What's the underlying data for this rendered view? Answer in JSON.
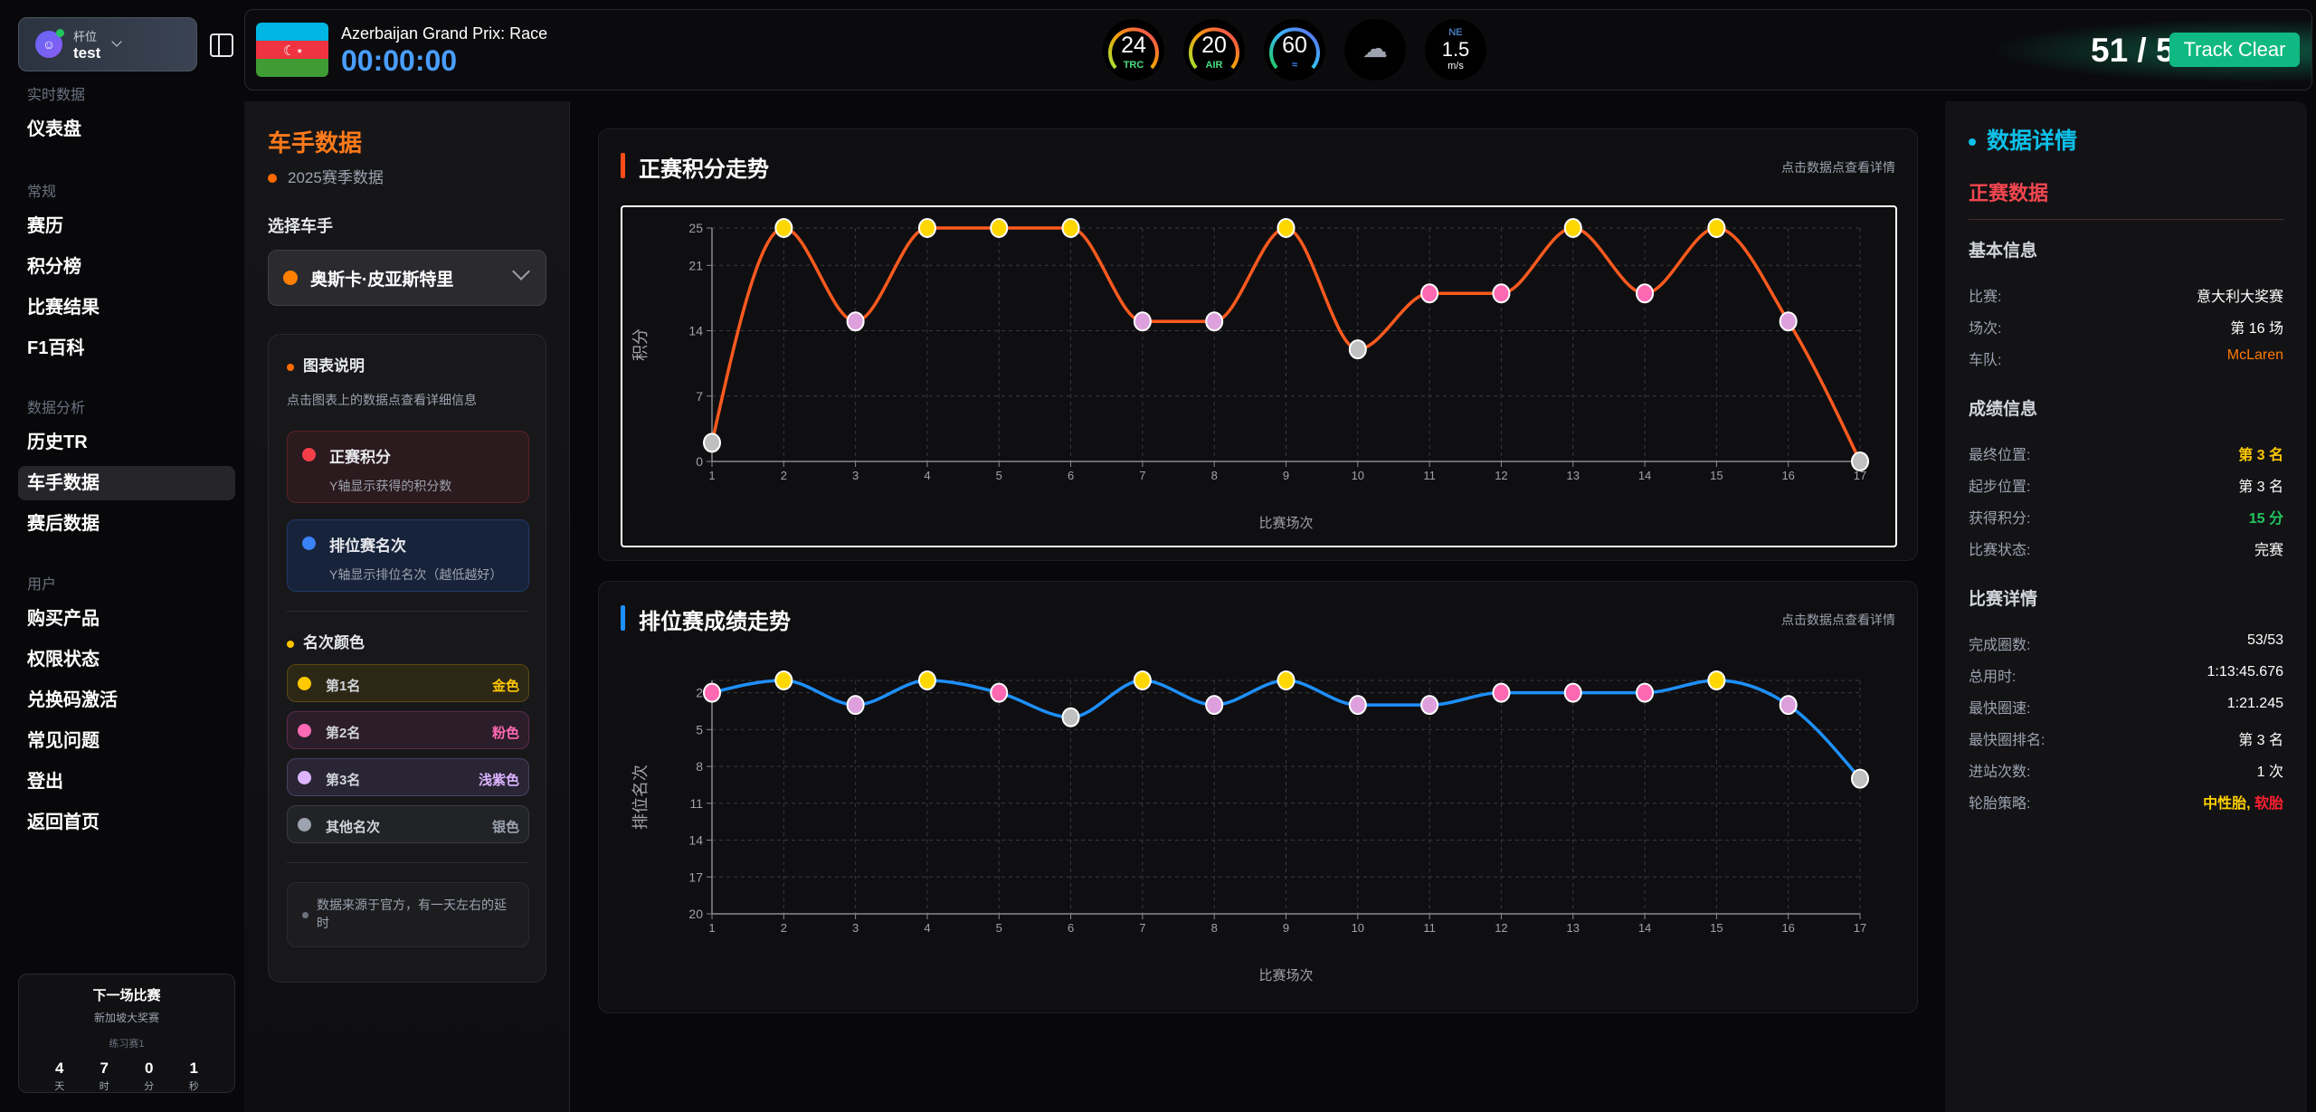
{
  "profile": {
    "role": "杆位",
    "username": "test",
    "icon": "user-icon"
  },
  "sidebar": {
    "sections": [
      {
        "title": "实时数据",
        "items": [
          "仪表盘"
        ]
      },
      {
        "title": "常规",
        "items": [
          "赛历",
          "积分榜",
          "比赛结果",
          "F1百科"
        ]
      },
      {
        "title": "数据分析",
        "items": [
          "历史TR",
          "车手数据",
          "赛后数据"
        ]
      },
      {
        "title": "用户",
        "items": [
          "购买产品",
          "权限状态",
          "兑换码激活",
          "常见问题",
          "登出",
          "返回首页"
        ]
      }
    ],
    "active": "车手数据",
    "next_race": {
      "title": "下一场比赛",
      "name": "新加坡大奖赛",
      "session": "练习赛1",
      "countdown": [
        {
          "v": "4",
          "u": "天"
        },
        {
          "v": "7",
          "u": "时"
        },
        {
          "v": "0",
          "u": "分"
        },
        {
          "v": "1",
          "u": "秒"
        }
      ]
    }
  },
  "topbar": {
    "race_title": "Azerbaijan Grand Prix: Race",
    "timer": "00:00:00",
    "gauges": [
      {
        "value": "24",
        "label": "TRC"
      },
      {
        "value": "20",
        "label": "AIR"
      },
      {
        "value": "60",
        "label": "humidity-icon"
      }
    ],
    "weather_icon": "rain-cloud-icon",
    "wind": {
      "dir": "NE",
      "speed": "1.5",
      "unit": "m/s"
    },
    "laps": "51 / 51",
    "track_status": "Track Clear"
  },
  "left": {
    "title": "车手数据",
    "season": "2025赛季数据",
    "select_label": "选择车手",
    "driver": "奥斯卡·皮亚斯特里",
    "legend_title": "图表说明",
    "legend_desc": "点击图表上的数据点查看详细信息",
    "legend_items": [
      {
        "title": "正赛积分",
        "desc": "Y轴显示获得的积分数"
      },
      {
        "title": "排位赛名次",
        "desc": "Y轴显示排位名次（越低越好）"
      }
    ],
    "rank_title": "名次颜色",
    "ranks": [
      {
        "label": "第1名",
        "color_name": "金色"
      },
      {
        "label": "第2名",
        "color_name": "粉色"
      },
      {
        "label": "第3名",
        "color_name": "浅紫色"
      },
      {
        "label": "其他名次",
        "color_name": "银色"
      }
    ],
    "note": "数据来源于官方，有一天左右的延时"
  },
  "colors": {
    "gold": "#ffd700",
    "pink": "#ff69b4",
    "lavender": "#dda0dd",
    "silver": "#c0c0c0",
    "race_line": "#ff5a1f",
    "quali_line": "#1e90ff",
    "accent": "#ff7a1a"
  },
  "chart_data": [
    {
      "type": "line",
      "title": "正赛积分走势",
      "hint": "点击数据点查看详情",
      "xlabel": "比赛场次",
      "ylabel": "积分",
      "x": [
        1,
        2,
        3,
        4,
        5,
        6,
        7,
        8,
        9,
        10,
        11,
        12,
        13,
        14,
        15,
        16,
        17
      ],
      "values": [
        2,
        25,
        15,
        25,
        25,
        25,
        15,
        15,
        25,
        12,
        18,
        18,
        25,
        18,
        25,
        15,
        0
      ],
      "yticks": [
        0,
        7,
        14,
        21,
        25
      ],
      "ylim": [
        0,
        25
      ],
      "grid": true
    },
    {
      "type": "line",
      "title": "排位赛成绩走势",
      "hint": "点击数据点查看详情",
      "xlabel": "比赛场次",
      "ylabel": "排位名次",
      "x": [
        1,
        2,
        3,
        4,
        5,
        6,
        7,
        8,
        9,
        10,
        11,
        12,
        13,
        14,
        15,
        16,
        17
      ],
      "values": [
        2,
        1,
        3,
        1,
        2,
        4,
        1,
        3,
        1,
        3,
        3,
        2,
        2,
        2,
        1,
        3,
        9
      ],
      "yticks": [
        2,
        5,
        8,
        11,
        14,
        17,
        20
      ],
      "ylim": [
        1,
        20
      ],
      "y_inverted": true,
      "grid": true
    }
  ],
  "details": {
    "title": "数据详情",
    "subtitle": "正赛数据",
    "basic_title": "基本信息",
    "basic": [
      {
        "k": "比赛:",
        "v": "意大利大奖赛"
      },
      {
        "k": "场次:",
        "v": "第 16 场"
      },
      {
        "k": "车队:",
        "v": "McLaren"
      }
    ],
    "result_title": "成绩信息",
    "result": [
      {
        "k": "最终位置:",
        "v": "第 3 名"
      },
      {
        "k": "起步位置:",
        "v": "第 3 名"
      },
      {
        "k": "获得积分:",
        "v": "15 分"
      },
      {
        "k": "比赛状态:",
        "v": "完赛"
      }
    ],
    "race_title": "比赛详情",
    "race": [
      {
        "k": "完成圈数:",
        "v": "53/53"
      },
      {
        "k": "总用时:",
        "v": "1:13:45.676"
      },
      {
        "k": "最快圈速:",
        "v": "1:21.245"
      },
      {
        "k": "最快圈排名:",
        "v": "第 3 名"
      },
      {
        "k": "进站次数:",
        "v": "1 次"
      },
      {
        "k": "轮胎策略:",
        "v": ""
      }
    ],
    "tyres": [
      {
        "name": "中性胎",
        "color": "#ffd000"
      },
      {
        "name": "软胎",
        "color": "#ff2030"
      }
    ]
  }
}
